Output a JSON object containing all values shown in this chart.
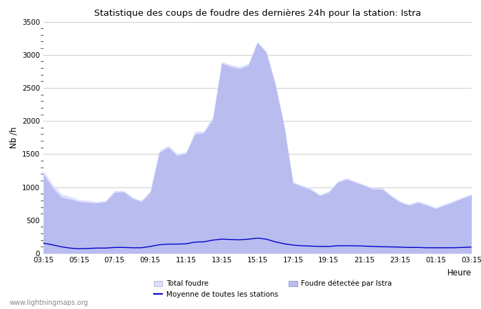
{
  "title": "Statistique des coups de foudre des dernières 24h pour la station: Istra",
  "ylabel": "Nb /h",
  "xlabel": "Heure",
  "watermark": "www.lightningmaps.org",
  "ylim": [
    0,
    3500
  ],
  "yticks": [
    0,
    500,
    1000,
    1500,
    2000,
    2500,
    3000,
    3500
  ],
  "xtick_labels": [
    "03:15",
    "05:15",
    "07:15",
    "09:15",
    "11:15",
    "13:15",
    "15:15",
    "17:15",
    "19:15",
    "21:15",
    "23:15",
    "01:15",
    "03:15"
  ],
  "color_total": "#dde0ff",
  "color_istra": "#b8bcee",
  "color_moyenne": "#0000cc",
  "color_bg": "#ffffff",
  "color_grid": "#cccccc",
  "legend_total": "Total foudre",
  "legend_istra": "Foudre détectée par Istra",
  "legend_moyenne": "Moyenne de toutes les stations",
  "total_foudre": [
    1250,
    1050,
    900,
    860,
    810,
    800,
    780,
    800,
    950,
    950,
    850,
    800,
    950,
    1550,
    1630,
    1510,
    1530,
    1840,
    1850,
    2060,
    2900,
    2850,
    2820,
    2870,
    3200,
    3060,
    2580,
    1950,
    1080,
    1030,
    980,
    890,
    940,
    1090,
    1140,
    1090,
    1040,
    990,
    990,
    880,
    790,
    745,
    790,
    745,
    695,
    745,
    795,
    850,
    900
  ],
  "foudre_istra": [
    1200,
    1000,
    850,
    820,
    780,
    770,
    760,
    780,
    920,
    930,
    830,
    780,
    920,
    1520,
    1600,
    1480,
    1510,
    1800,
    1820,
    2020,
    2870,
    2820,
    2790,
    2840,
    3180,
    3030,
    2550,
    1920,
    1060,
    1010,
    960,
    870,
    920,
    1070,
    1120,
    1070,
    1020,
    970,
    970,
    860,
    770,
    725,
    770,
    725,
    675,
    725,
    775,
    830,
    880
  ],
  "moyenne": [
    155,
    130,
    100,
    80,
    70,
    75,
    80,
    80,
    90,
    90,
    85,
    85,
    105,
    130,
    140,
    140,
    145,
    170,
    175,
    200,
    215,
    210,
    205,
    215,
    230,
    215,
    175,
    145,
    125,
    115,
    110,
    105,
    105,
    115,
    115,
    115,
    110,
    105,
    100,
    98,
    95,
    90,
    90,
    85,
    85,
    85,
    85,
    90,
    95
  ]
}
